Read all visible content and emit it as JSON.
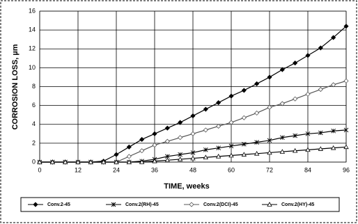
{
  "chart_data": {
    "type": "line",
    "xlabel": "TIME, weeks",
    "ylabel": "CORROSION LOSS, µm",
    "x": [
      0,
      4,
      8,
      12,
      16,
      20,
      24,
      28,
      32,
      36,
      40,
      44,
      48,
      52,
      56,
      60,
      64,
      68,
      72,
      76,
      80,
      84,
      88,
      92,
      96
    ],
    "series": [
      {
        "name": "Conv.2-45",
        "color": "#000000",
        "marker": "filled-diamond",
        "values": [
          0,
          0,
          0,
          0,
          0,
          0.1,
          0.8,
          1.6,
          2.4,
          3.0,
          3.6,
          4.2,
          4.9,
          5.6,
          6.3,
          7.0,
          7.6,
          8.3,
          9.0,
          9.8,
          10.5,
          11.3,
          12.1,
          13.2,
          14.4
        ]
      },
      {
        "name": "Conv.2(RH)-45",
        "color": "#000000",
        "marker": "asterisk",
        "values": [
          0,
          0,
          0,
          0,
          0,
          0,
          0,
          0,
          0.1,
          0.3,
          0.6,
          0.8,
          1.0,
          1.3,
          1.5,
          1.7,
          1.9,
          2.1,
          2.3,
          2.6,
          2.8,
          3.0,
          3.1,
          3.3,
          3.4
        ]
      },
      {
        "name": "Conv.2(DCI)-45",
        "color": "#555555",
        "marker": "open-diamond",
        "values": [
          0,
          0,
          0,
          0,
          0,
          0,
          0,
          0.6,
          1.2,
          1.8,
          2.2,
          2.6,
          3.0,
          3.4,
          3.8,
          4.2,
          4.7,
          5.2,
          5.8,
          6.2,
          6.7,
          7.2,
          7.7,
          8.2,
          8.6
        ]
      },
      {
        "name": "Conv.2(HY)-45",
        "color": "#000000",
        "marker": "open-triangle",
        "values": [
          0,
          0,
          0,
          0,
          0,
          0,
          0,
          0,
          0,
          0.1,
          0.2,
          0.3,
          0.4,
          0.5,
          0.6,
          0.7,
          0.8,
          0.9,
          1.0,
          1.1,
          1.2,
          1.3,
          1.4,
          1.5,
          1.6
        ]
      }
    ],
    "xlim": [
      0,
      96
    ],
    "xticks": [
      0,
      12,
      24,
      36,
      48,
      60,
      72,
      84,
      96
    ],
    "ylim": [
      0,
      16
    ],
    "yticks": [
      0,
      2,
      4,
      6,
      8,
      10,
      12,
      14,
      16
    ],
    "grid": true,
    "legend": "bottom"
  }
}
